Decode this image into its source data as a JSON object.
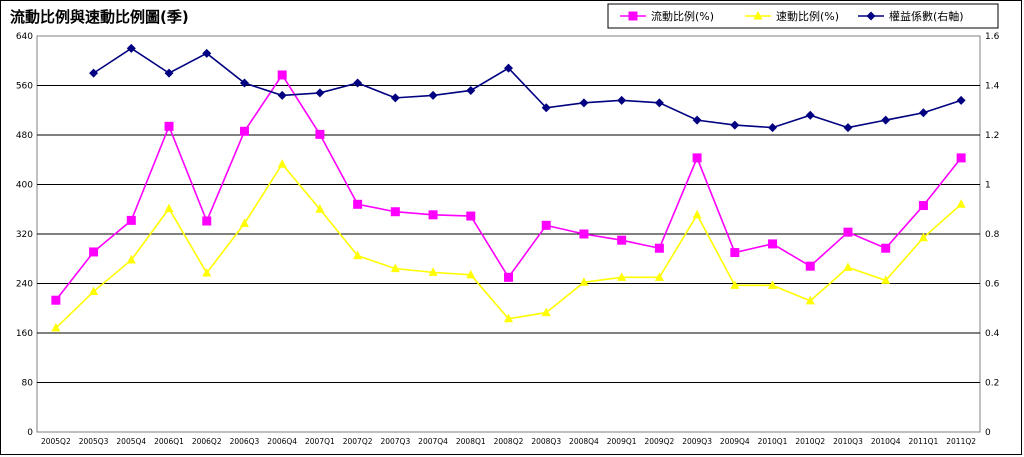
{
  "chart_data": {
    "type": "line",
    "title": "流動比例與速動比例圖(季)",
    "categories": [
      "2005Q2",
      "2005Q3",
      "2005Q4",
      "2006Q1",
      "2006Q2",
      "2006Q3",
      "2006Q4",
      "2007Q1",
      "2007Q2",
      "2007Q3",
      "2007Q4",
      "2008Q1",
      "2008Q2",
      "2008Q3",
      "2008Q4",
      "2009Q1",
      "2009Q2",
      "2009Q3",
      "2009Q4",
      "2010Q1",
      "2010Q2",
      "2010Q3",
      "2010Q4",
      "2011Q1",
      "2011Q2"
    ],
    "y_left": {
      "min": 0,
      "max": 640,
      "ticks": [
        "0",
        "80",
        "160",
        "240",
        "320",
        "400",
        "480",
        "560",
        "640"
      ]
    },
    "y_right": {
      "min": 0,
      "max": 1.6,
      "ticks": [
        "0",
        "0.2",
        "0.4",
        "0.6",
        "0.8",
        "1",
        "1.2",
        "1.4",
        "1.6"
      ]
    },
    "grid": true,
    "legend_position": "top-right",
    "series": [
      {
        "name": "流動比例(%)",
        "axis": "left",
        "color": "#ff00ff",
        "marker": "square",
        "values": [
          213,
          291,
          342,
          494,
          341,
          486,
          577,
          481,
          368,
          356,
          351,
          349,
          250,
          334,
          320,
          310,
          297,
          443,
          290,
          304,
          268,
          323,
          297,
          366,
          443
        ]
      },
      {
        "name": "速動比例(%)",
        "axis": "left",
        "color": "#ffff00",
        "marker": "triangle",
        "values": [
          168,
          227,
          278,
          361,
          257,
          337,
          433,
          360,
          285,
          264,
          258,
          254,
          183,
          193,
          242,
          250,
          250,
          351,
          237,
          237,
          212,
          266,
          245,
          314,
          368
        ]
      },
      {
        "name": "權益係數(右軸)",
        "axis": "right",
        "color": "#000080",
        "marker": "diamond",
        "values": [
          null,
          1.45,
          1.55,
          1.45,
          1.53,
          1.41,
          1.36,
          1.37,
          1.41,
          1.35,
          1.36,
          1.38,
          1.47,
          1.31,
          1.33,
          1.34,
          1.33,
          1.26,
          1.24,
          1.23,
          1.28,
          1.23,
          1.26,
          1.29,
          1.34
        ]
      }
    ]
  }
}
